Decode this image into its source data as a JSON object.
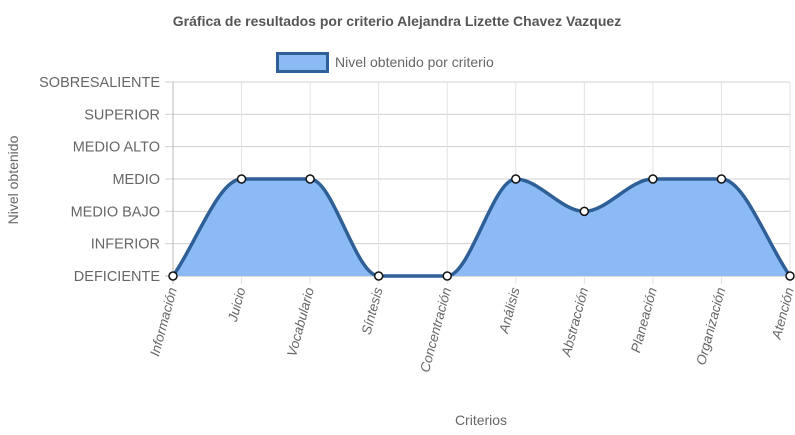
{
  "chart_data": {
    "type": "area",
    "title": "Gráfica de resultados por criterio Alejandra Lizette Chavez Vazquez",
    "xlabel": "Criterios",
    "ylabel": "Nivel obtenido",
    "categories": [
      "Información",
      "Juicio",
      "Vocabulario",
      "Síntesis",
      "Concentración",
      "Análisis",
      "Abstracción",
      "Planeación",
      "Organización",
      "Atención"
    ],
    "y_levels": [
      "DEFICIENTE",
      "INFERIOR",
      "MEDIO BAJO",
      "MEDIO",
      "MEDIO ALTO",
      "SUPERIOR",
      "SOBRESALIENTE"
    ],
    "ylim": [
      0,
      6
    ],
    "series": [
      {
        "name": "Nivel obtenido por criterio",
        "values": [
          0,
          3,
          3,
          0,
          0,
          3,
          2,
          3,
          3,
          0
        ],
        "fill_color": "#8bbaf5",
        "line_color": "#2e5f96"
      }
    ],
    "grid": true,
    "legend_position": "top"
  }
}
